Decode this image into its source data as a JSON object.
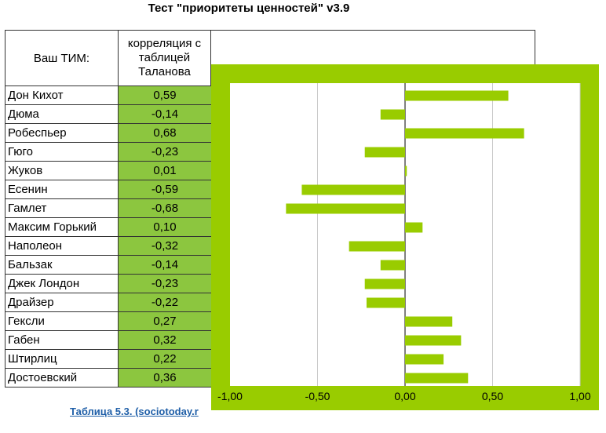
{
  "title": "Тест \"приоритеты ценностей\" v3.9",
  "table": {
    "header_tim": "Ваш ТИМ:",
    "header_corr_lines": [
      "корреляция с",
      "таблицей",
      "Таланова"
    ]
  },
  "caption": "Таблица 5.3. (sociotoday.r",
  "colors": {
    "bar": "#99cc00",
    "value_cell": "#8cc63f",
    "link": "#1f5fa8"
  },
  "chart_data": {
    "type": "bar",
    "orientation": "horizontal",
    "categories": [
      "Дон Кихот",
      "Дюма",
      "Робеспьер",
      "Гюго",
      "Жуков",
      "Есенин",
      "Гамлет",
      "Максим Горький",
      "Наполеон",
      "Бальзак",
      "Джек Лондон",
      "Драйзер",
      "Гексли",
      "Габен",
      "Штирлиц",
      "Достоевский"
    ],
    "values": [
      0.59,
      -0.14,
      0.68,
      -0.23,
      0.01,
      -0.59,
      -0.68,
      0.1,
      -0.32,
      -0.14,
      -0.23,
      -0.22,
      0.27,
      0.32,
      0.22,
      0.36
    ],
    "value_labels": [
      "0,59",
      "-0,14",
      "0,68",
      "-0,23",
      "0,01",
      "-0,59",
      "-0,68",
      "0,10",
      "-0,32",
      "-0,14",
      "-0,23",
      "-0,22",
      "0,27",
      "0,32",
      "0,22",
      "0,36"
    ],
    "xlim": [
      -1,
      1
    ],
    "xticks": [
      -1,
      -0.5,
      0,
      0.5,
      1
    ],
    "xtick_labels": [
      "-1,00",
      "-0,50",
      "0,00",
      "0,50",
      "1,00"
    ],
    "grid": true,
    "legend": "none"
  }
}
